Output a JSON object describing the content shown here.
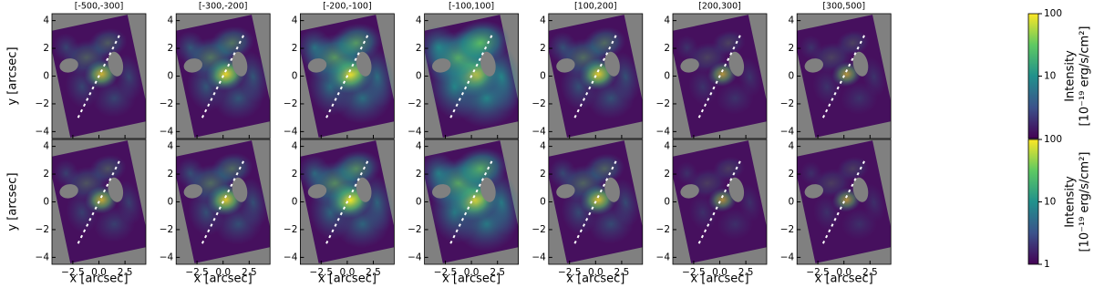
{
  "chart_data": {
    "type": "image",
    "panel_titles": [
      "[-500,-300]",
      "[-300,-200]",
      "[-200,-100]",
      "[-100,100]",
      "[100,200]",
      "[200,300]",
      "[300,500]"
    ],
    "xlabel": "x [arcsec]",
    "ylabel": "y [arcsec]",
    "xlim": [
      -4.5,
      4.5
    ],
    "ylim": [
      -4.5,
      4.5
    ],
    "xticks": [
      {
        "value": -2.5,
        "label": "−2.5"
      },
      {
        "value": 0,
        "label": "0.0"
      },
      {
        "value": 2.5,
        "label": "2.5"
      }
    ],
    "yticks": [
      {
        "value": -4,
        "label": "−4"
      },
      {
        "value": -2,
        "label": "−2"
      },
      0,
      2,
      4
    ],
    "colorbar": {
      "label": "Intensity",
      "unit": "[10⁻¹⁹ erg/s/cm²]",
      "log": true,
      "clim": [
        1,
        100
      ],
      "top_ticks": [
        10,
        100
      ],
      "bottom_ticks": [
        1,
        10,
        100
      ]
    }
  }
}
